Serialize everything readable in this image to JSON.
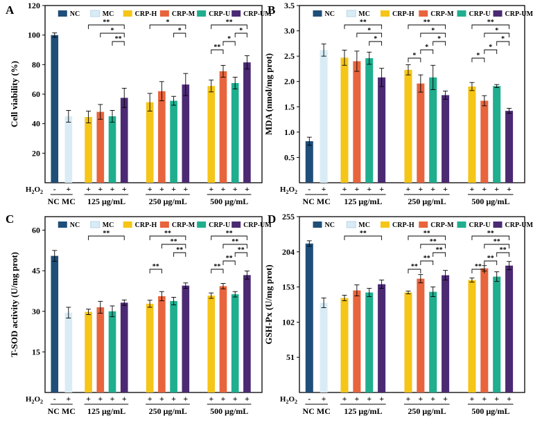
{
  "colors": {
    "NC": "#1f4e79",
    "MC": "#d9ecf5",
    "CRP-H": "#f5c518",
    "CRP-M": "#e8643c",
    "CRP-U": "#1fae8e",
    "CRP-UM": "#4b2a73"
  },
  "legend": [
    "NC",
    "MC",
    "CRP-H",
    "CRP-M",
    "CRP-U",
    "CRP-UM"
  ],
  "x_labels": {
    "h2o2": "H2O2",
    "signs": [
      "-",
      "+",
      "+",
      "+",
      "+",
      "+",
      "+",
      "+",
      "+",
      "+",
      "+",
      "+",
      "+",
      "+"
    ],
    "groups": [
      "NC MC",
      "125 μg/mL",
      "250 μg/mL",
      "500 μg/mL"
    ]
  },
  "chart_data": [
    {
      "type": "bar",
      "panel": "A",
      "ylabel": "Cell viability (%)",
      "ylim": [
        0,
        120
      ],
      "yticks": [
        20,
        40,
        60,
        80,
        100,
        120
      ],
      "values": [
        100,
        45,
        44.5,
        48,
        45,
        57.5,
        54.5,
        62,
        55.5,
        66.5,
        65.5,
        75.5,
        67.5,
        81.5
      ],
      "errors": [
        1.5,
        4,
        4,
        5,
        4,
        6.5,
        6,
        6.5,
        3,
        7.5,
        4,
        4,
        4,
        4.5
      ],
      "sig": [
        {
          "i": 2,
          "j": 5,
          "label": "**",
          "level": 0
        },
        {
          "i": 3,
          "j": 5,
          "label": "*",
          "level": 1
        },
        {
          "i": 4,
          "j": 5,
          "label": "**",
          "level": 2
        },
        {
          "i": 6,
          "j": 9,
          "label": "*",
          "level": 0
        },
        {
          "i": 8,
          "j": 9,
          "label": "*",
          "level": 1
        },
        {
          "i": 10,
          "j": 13,
          "label": "**",
          "level": 0
        },
        {
          "i": 12,
          "j": 13,
          "label": "*",
          "level": 1
        },
        {
          "i": 11,
          "j": 12,
          "label": "*",
          "level": 2
        },
        {
          "i": 10,
          "j": 11,
          "label": "**",
          "level": 3
        }
      ]
    },
    {
      "type": "bar",
      "panel": "B",
      "ylabel": "MDA (nmol/mg prot)",
      "ylim": [
        0,
        3.5
      ],
      "yticks": [
        0.5,
        1.0,
        1.5,
        2.0,
        2.5,
        3.0,
        3.5
      ],
      "values": [
        0.82,
        2.62,
        2.47,
        2.4,
        2.46,
        2.08,
        2.23,
        1.96,
        2.08,
        1.73,
        1.9,
        1.62,
        1.91,
        1.42
      ],
      "errors": [
        0.08,
        0.12,
        0.15,
        0.2,
        0.12,
        0.18,
        0.1,
        0.17,
        0.24,
        0.08,
        0.08,
        0.1,
        0.03,
        0.05
      ],
      "sig": [
        {
          "i": 2,
          "j": 5,
          "label": "**",
          "level": 0
        },
        {
          "i": 3,
          "j": 5,
          "label": "*",
          "level": 1
        },
        {
          "i": 4,
          "j": 5,
          "label": "*",
          "level": 2
        },
        {
          "i": 6,
          "j": 9,
          "label": "**",
          "level": 0
        },
        {
          "i": 7,
          "j": 9,
          "label": "*",
          "level": 1
        },
        {
          "i": 8,
          "j": 9,
          "label": "*",
          "level": 2
        },
        {
          "i": 7,
          "j": 8,
          "label": "*",
          "level": 3
        },
        {
          "i": 6,
          "j": 7,
          "label": "*",
          "level": 4
        },
        {
          "i": 10,
          "j": 13,
          "label": "**",
          "level": 0
        },
        {
          "i": 11,
          "j": 13,
          "label": "*",
          "level": 1
        },
        {
          "i": 12,
          "j": 13,
          "label": "*",
          "level": 2
        },
        {
          "i": 11,
          "j": 12,
          "label": "*",
          "level": 3
        },
        {
          "i": 10,
          "j": 11,
          "label": "*",
          "level": 4
        }
      ]
    },
    {
      "type": "bar",
      "panel": "C",
      "ylabel": "T-SOD activity (U/mg prot)",
      "ylim": [
        0,
        65
      ],
      "yticks": [
        15,
        30,
        45,
        60
      ],
      "values": [
        50.5,
        29.5,
        29.8,
        31.5,
        30,
        33.2,
        32.8,
        35.6,
        33.8,
        39.5,
        35.8,
        39.3,
        36.3,
        43.4
      ],
      "errors": [
        2,
        2,
        1,
        2.2,
        2,
        1,
        1.3,
        1.7,
        1.4,
        1,
        1,
        1,
        1,
        1.5
      ],
      "sig": [
        {
          "i": 2,
          "j": 5,
          "label": "**",
          "level": 0
        },
        {
          "i": 6,
          "j": 9,
          "label": "**",
          "level": 0
        },
        {
          "i": 7,
          "j": 9,
          "label": "**",
          "level": 1
        },
        {
          "i": 8,
          "j": 9,
          "label": "**",
          "level": 2
        },
        {
          "i": 6,
          "j": 7,
          "label": "**",
          "level": 4
        },
        {
          "i": 10,
          "j": 13,
          "label": "**",
          "level": 0
        },
        {
          "i": 11,
          "j": 13,
          "label": "**",
          "level": 1
        },
        {
          "i": 12,
          "j": 13,
          "label": "**",
          "level": 2
        },
        {
          "i": 11,
          "j": 12,
          "label": "**",
          "level": 3
        },
        {
          "i": 10,
          "j": 11,
          "label": "**",
          "level": 4
        }
      ]
    },
    {
      "type": "bar",
      "panel": "D",
      "ylabel": "GSH-Px (U/mg prot)",
      "ylim": [
        0,
        255
      ],
      "yticks": [
        51,
        102,
        153,
        204,
        255
      ],
      "values": [
        216,
        130,
        137,
        148,
        145,
        157,
        145,
        165,
        146,
        170,
        163,
        180,
        168,
        184
      ],
      "errors": [
        4,
        7,
        4,
        8,
        6,
        6,
        2,
        6,
        7,
        7,
        3,
        4,
        7,
        6
      ],
      "sig": [
        {
          "i": 2,
          "j": 5,
          "label": "**",
          "level": 0
        },
        {
          "i": 6,
          "j": 9,
          "label": "**",
          "level": 0
        },
        {
          "i": 7,
          "j": 9,
          "label": "**",
          "level": 1
        },
        {
          "i": 8,
          "j": 9,
          "label": "**",
          "level": 2
        },
        {
          "i": 7,
          "j": 8,
          "label": "**",
          "level": 3
        },
        {
          "i": 6,
          "j": 7,
          "label": "**",
          "level": 4
        },
        {
          "i": 10,
          "j": 13,
          "label": "**",
          "level": 0
        },
        {
          "i": 11,
          "j": 13,
          "label": "**",
          "level": 1
        },
        {
          "i": 12,
          "j": 13,
          "label": "**",
          "level": 2
        },
        {
          "i": 11,
          "j": 12,
          "label": "**",
          "level": 3
        },
        {
          "i": 10,
          "j": 11,
          "label": "**",
          "level": 4
        }
      ]
    }
  ]
}
